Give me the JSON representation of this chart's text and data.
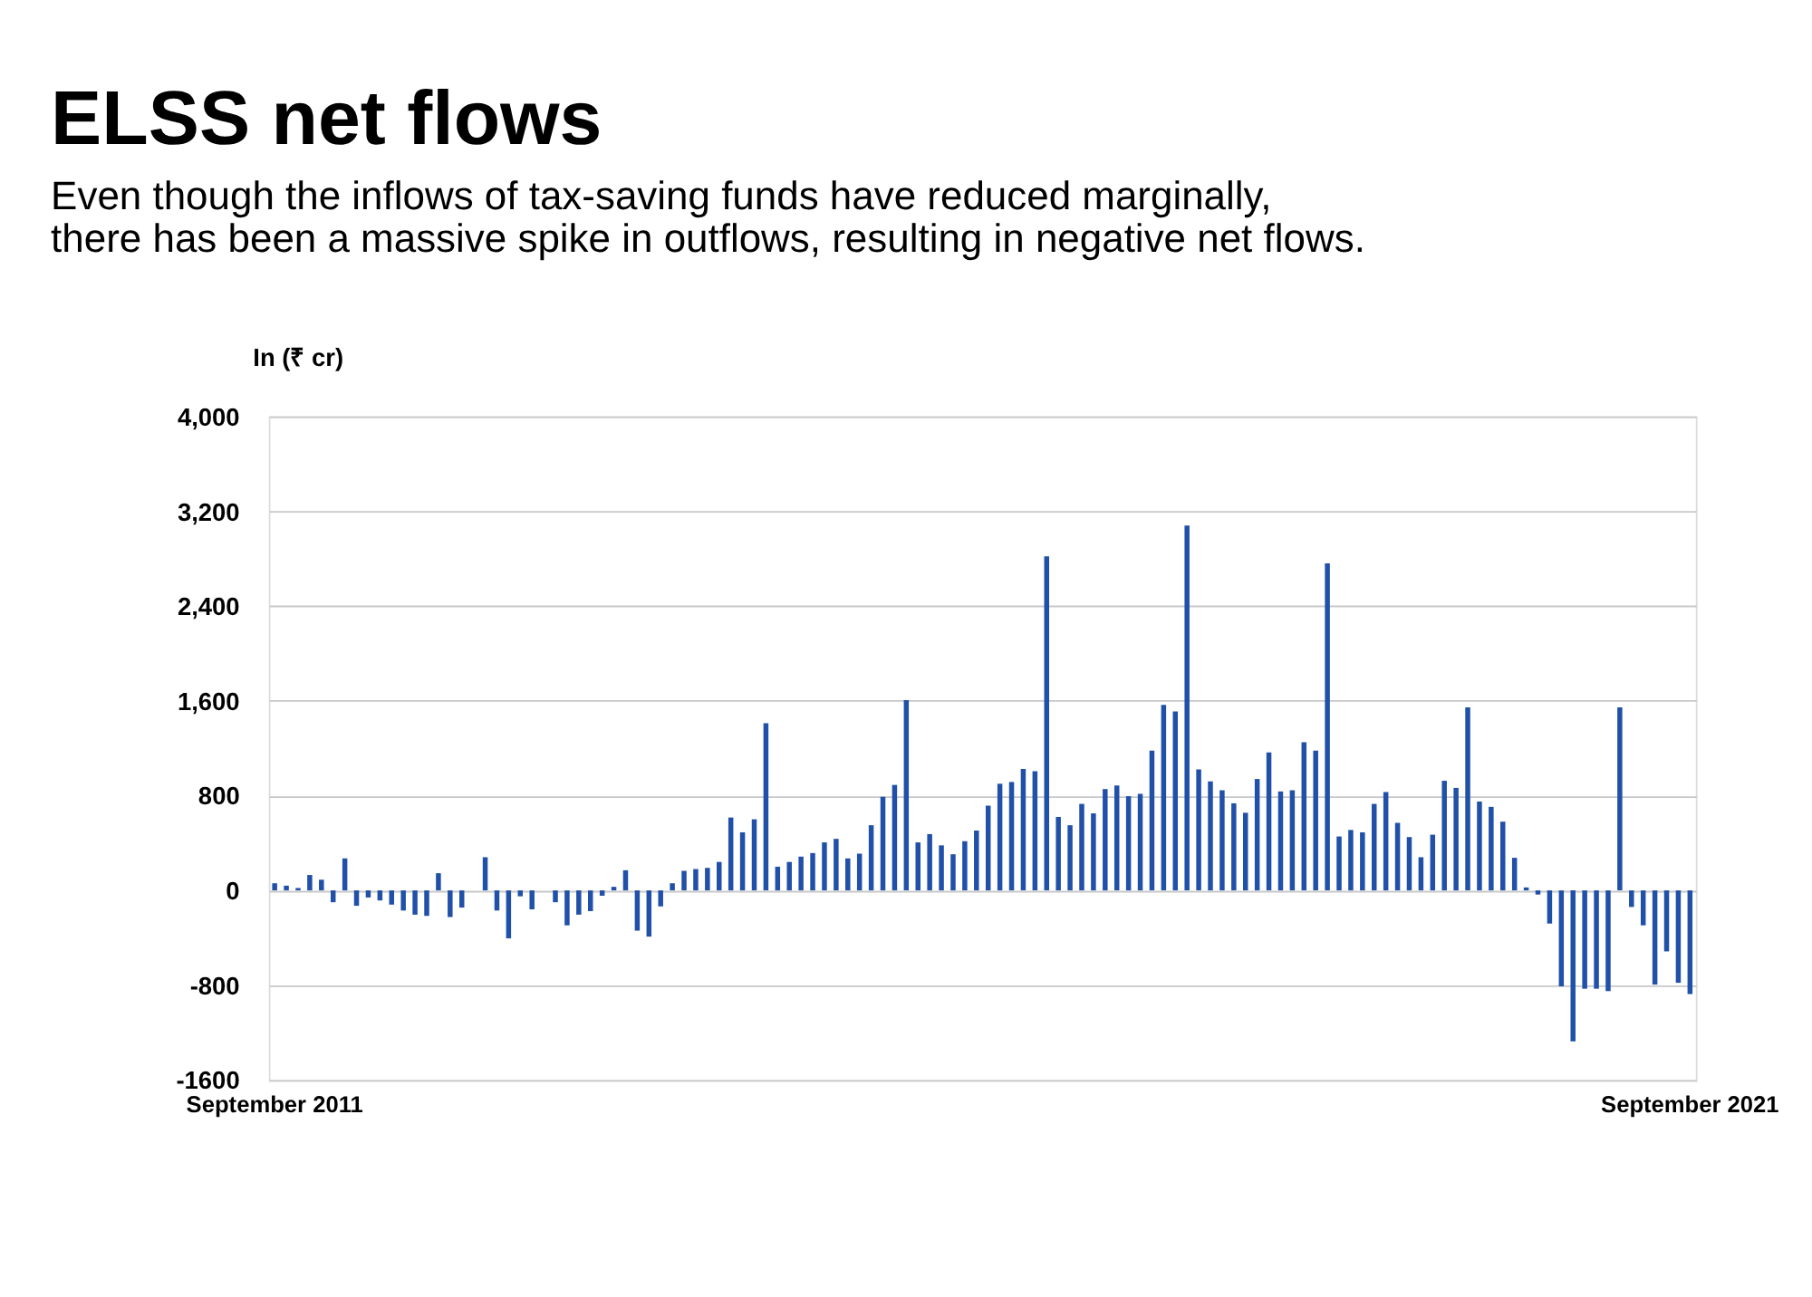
{
  "chart_data": {
    "type": "bar",
    "title": "ELSS net flows",
    "subtitle": [
      "Even though the inflows of tax-saving funds have reduced marginally,",
      "there has been a massive spike in outflows, resulting in negative net flows."
    ],
    "ylabel": "In  (₹ cr)",
    "categories": [
      "September 2011",
      null,
      null,
      null,
      null,
      null,
      null,
      null,
      null,
      null,
      null,
      null,
      null,
      null,
      null,
      null,
      null,
      null,
      null,
      null,
      null,
      null,
      null,
      null,
      null,
      null,
      null,
      null,
      null,
      null,
      null,
      null,
      null,
      null,
      null,
      null,
      null,
      null,
      null,
      null,
      null,
      null,
      null,
      null,
      null,
      null,
      null,
      null,
      null,
      null,
      null,
      null,
      null,
      null,
      null,
      null,
      null,
      null,
      null,
      null,
      null,
      null,
      null,
      null,
      null,
      null,
      null,
      null,
      null,
      null,
      null,
      null,
      null,
      null,
      null,
      null,
      null,
      null,
      null,
      null,
      null,
      null,
      null,
      null,
      null,
      null,
      null,
      null,
      null,
      null,
      null,
      null,
      null,
      null,
      null,
      null,
      null,
      null,
      null,
      null,
      null,
      null,
      null,
      null,
      null,
      null,
      null,
      null,
      null,
      null,
      null,
      null,
      null,
      null,
      null,
      null,
      null,
      null,
      null,
      null,
      null,
      "September 2021"
    ],
    "values": [
      60,
      40,
      20,
      130,
      90,
      -100,
      270,
      -130,
      -60,
      -85,
      -120,
      -170,
      -205,
      -215,
      145,
      -225,
      -145,
      0,
      280,
      -170,
      -405,
      -50,
      -160,
      0,
      -100,
      -295,
      -205,
      -175,
      -45,
      30,
      170,
      -340,
      -390,
      -135,
      60,
      165,
      180,
      190,
      240,
      615,
      490,
      600,
      1410,
      200,
      240,
      285,
      315,
      405,
      435,
      270,
      310,
      550,
      790,
      890,
      1605,
      405,
      475,
      380,
      305,
      415,
      505,
      715,
      900,
      915,
      1025,
      1005,
      2820,
      620,
      550,
      730,
      650,
      855,
      885,
      795,
      815,
      1180,
      1565,
      1510,
      3080,
      1020,
      920,
      845,
      735,
      655,
      940,
      1165,
      835,
      845,
      1250,
      1180,
      2760,
      455,
      510,
      490,
      730,
      830,
      570,
      450,
      280,
      470,
      925,
      865,
      1545,
      750,
      705,
      580,
      275,
      25,
      -35,
      -280,
      -810,
      -1275,
      -830,
      -830,
      -850,
      1545,
      -140,
      -295,
      -795,
      -515,
      -780,
      -875
    ],
    "color": "#2050a8",
    "ylim": [
      -1600,
      4000
    ],
    "yticks": [
      {
        "value": 4000,
        "label": "4,000"
      },
      {
        "value": 3200,
        "label": "3,200"
      },
      {
        "value": 2400,
        "label": "2,400"
      },
      {
        "value": 1600,
        "label": "1,600"
      },
      800,
      0,
      -800,
      {
        "value": -1600,
        "label": "-1600"
      }
    ],
    "grid": "y"
  }
}
